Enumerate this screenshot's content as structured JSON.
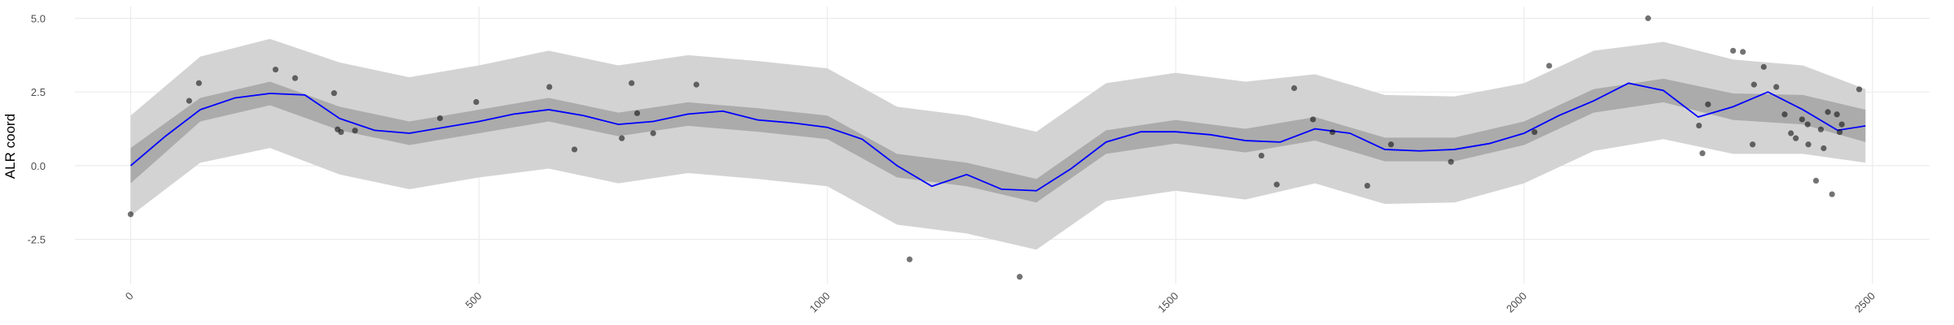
{
  "chart_data": {
    "type": "scatter",
    "ylabel": "ALR coord",
    "xlim": [
      -80,
      2582
    ],
    "ylim": [
      -4.0,
      5.4
    ],
    "xticks": [
      0,
      500,
      1000,
      1500,
      2000,
      2500
    ],
    "yticks": [
      -2.5,
      {
        "value": 0,
        "label": "0.0"
      },
      2.5,
      {
        "value": 5,
        "label": "5.0"
      }
    ],
    "grid": true,
    "points": {
      "color": "#000000",
      "x": [
        0,
        84,
        98,
        208,
        236,
        292,
        297,
        302,
        322,
        444,
        496,
        601,
        637,
        705,
        719,
        727,
        750,
        812,
        1118,
        1276,
        1623,
        1645,
        1670,
        1697,
        1725,
        1775,
        1809,
        1895,
        2015,
        2036,
        2178,
        2251,
        2256,
        2264,
        2300,
        2314,
        2328,
        2330,
        2344,
        2362,
        2374,
        2383,
        2390,
        2399,
        2407,
        2408,
        2419,
        2426,
        2430,
        2436,
        2442,
        2449,
        2453,
        2456,
        2481
      ],
      "y": [
        -1.65,
        2.2,
        2.8,
        3.26,
        2.97,
        2.46,
        1.23,
        1.14,
        1.19,
        1.61,
        2.16,
        2.67,
        0.55,
        0.93,
        2.8,
        1.78,
        1.1,
        2.75,
        -3.18,
        -3.77,
        0.34,
        -0.64,
        2.63,
        1.57,
        1.14,
        -0.68,
        0.72,
        0.13,
        1.14,
        3.39,
        5.0,
        1.36,
        0.42,
        2.08,
        3.9,
        3.86,
        0.72,
        2.75,
        3.35,
        2.67,
        1.74,
        1.1,
        0.93,
        1.57,
        1.4,
        0.72,
        -0.51,
        1.23,
        0.59,
        1.82,
        -0.97,
        1.74,
        1.14,
        1.4,
        2.59
      ]
    },
    "smooth": {
      "color": "#0000ff",
      "x": [
        0,
        50,
        100,
        150,
        200,
        250,
        300,
        350,
        400,
        450,
        500,
        550,
        600,
        650,
        700,
        750,
        800,
        850,
        900,
        950,
        1000,
        1050,
        1100,
        1150,
        1200,
        1250,
        1300,
        1350,
        1400,
        1450,
        1500,
        1550,
        1600,
        1650,
        1700,
        1750,
        1800,
        1850,
        1900,
        1950,
        2000,
        2050,
        2100,
        2150,
        2200,
        2250,
        2300,
        2350,
        2400,
        2450,
        2490
      ],
      "y": [
        0,
        1.0,
        1.9,
        2.3,
        2.45,
        2.4,
        1.6,
        1.2,
        1.1,
        1.3,
        1.5,
        1.75,
        1.9,
        1.7,
        1.4,
        1.5,
        1.75,
        1.85,
        1.55,
        1.45,
        1.3,
        0.9,
        0.0,
        -0.7,
        -0.3,
        -0.8,
        -0.85,
        -0.1,
        0.8,
        1.15,
        1.15,
        1.05,
        0.85,
        0.8,
        1.25,
        1.1,
        0.55,
        0.5,
        0.55,
        0.75,
        1.1,
        1.7,
        2.2,
        2.8,
        2.55,
        1.65,
        2.0,
        2.5,
        1.9,
        1.2,
        1.35
      ]
    },
    "band_x": [
      0,
      100,
      200,
      300,
      400,
      500,
      600,
      700,
      800,
      900,
      1000,
      1100,
      1200,
      1300,
      1400,
      1500,
      1600,
      1700,
      1800,
      1900,
      2000,
      2100,
      2200,
      2300,
      2400,
      2490
    ],
    "band_outer": {
      "color": "#d3d3d3",
      "lower": [
        -1.7,
        0.1,
        0.6,
        -0.3,
        -0.8,
        -0.4,
        -0.1,
        -0.6,
        -0.25,
        -0.45,
        -0.7,
        -2.0,
        -2.3,
        -2.85,
        -1.2,
        -0.85,
        -1.15,
        -0.6,
        -1.3,
        -1.25,
        -0.6,
        0.5,
        0.9,
        0.4,
        0.4,
        0.1
      ],
      "upper": [
        1.7,
        3.7,
        4.3,
        3.5,
        3.0,
        3.4,
        3.9,
        3.4,
        3.75,
        3.55,
        3.3,
        2.0,
        1.7,
        1.15,
        2.8,
        3.15,
        2.85,
        3.1,
        2.4,
        2.35,
        2.8,
        3.9,
        4.2,
        3.6,
        3.4,
        2.6
      ]
    },
    "band_inner": {
      "color": "#ababab",
      "lower": [
        -0.6,
        1.5,
        2.05,
        1.2,
        0.7,
        1.1,
        1.5,
        1.0,
        1.35,
        1.15,
        0.9,
        -0.4,
        -0.7,
        -1.25,
        0.4,
        0.75,
        0.45,
        0.85,
        0.15,
        0.15,
        0.7,
        1.8,
        2.15,
        1.55,
        1.4,
        0.8
      ],
      "upper": [
        0.6,
        2.3,
        2.85,
        2.0,
        1.5,
        1.9,
        2.3,
        1.8,
        2.15,
        1.95,
        1.7,
        0.4,
        0.1,
        -0.45,
        1.2,
        1.55,
        1.25,
        1.65,
        0.95,
        0.95,
        1.5,
        2.6,
        2.95,
        2.45,
        2.4,
        1.9
      ]
    }
  }
}
